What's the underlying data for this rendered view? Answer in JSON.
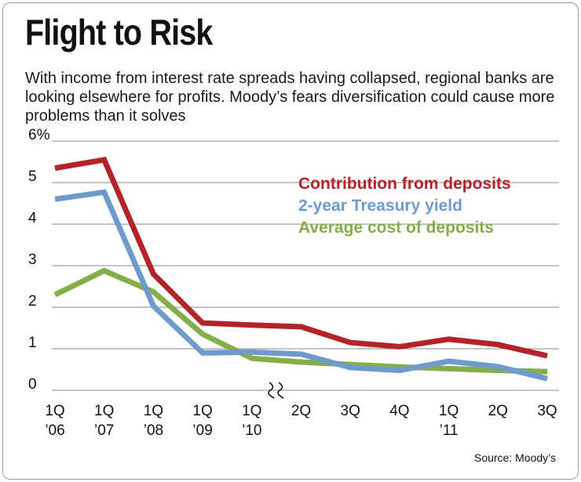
{
  "chart_data": {
    "type": "line",
    "title": "Flight to Risk",
    "subtitle": "With income from interest rate spreads having collapsed, regional banks are looking elsewhere for profits. Moody’s fears diversification could cause more problems than it solves",
    "source": "Source: Moody’s",
    "ylim": [
      0,
      6
    ],
    "y_ticks": [
      "0",
      "1",
      "2",
      "3",
      "4",
      "5",
      "6%"
    ],
    "axis_break_after_index": 4,
    "categories": [
      {
        "line1": "1Q",
        "line2": "’06"
      },
      {
        "line1": "1Q",
        "line2": "’07"
      },
      {
        "line1": "1Q",
        "line2": "’08"
      },
      {
        "line1": "1Q",
        "line2": "’09"
      },
      {
        "line1": "1Q",
        "line2": "’10"
      },
      {
        "line1": "2Q",
        "line2": ""
      },
      {
        "line1": "3Q",
        "line2": ""
      },
      {
        "line1": "4Q",
        "line2": ""
      },
      {
        "line1": "1Q",
        "line2": "’11"
      },
      {
        "line1": "2Q",
        "line2": ""
      },
      {
        "line1": "3Q",
        "line2": ""
      }
    ],
    "series": [
      {
        "name": "Contribution from deposits",
        "color": "#b4232a",
        "values": [
          5.35,
          5.55,
          2.8,
          1.62,
          1.57,
          1.53,
          1.15,
          1.05,
          1.23,
          1.1,
          0.83
        ]
      },
      {
        "name": "2-year Treasury yield",
        "color": "#6f9bcc",
        "values": [
          4.6,
          4.77,
          2.03,
          0.9,
          0.92,
          0.87,
          0.55,
          0.48,
          0.7,
          0.57,
          0.28
        ]
      },
      {
        "name": "Average cost of deposits",
        "color": "#87ad4a",
        "values": [
          2.3,
          2.88,
          2.37,
          1.35,
          0.77,
          0.68,
          0.62,
          0.56,
          0.52,
          0.48,
          0.45
        ]
      }
    ]
  }
}
